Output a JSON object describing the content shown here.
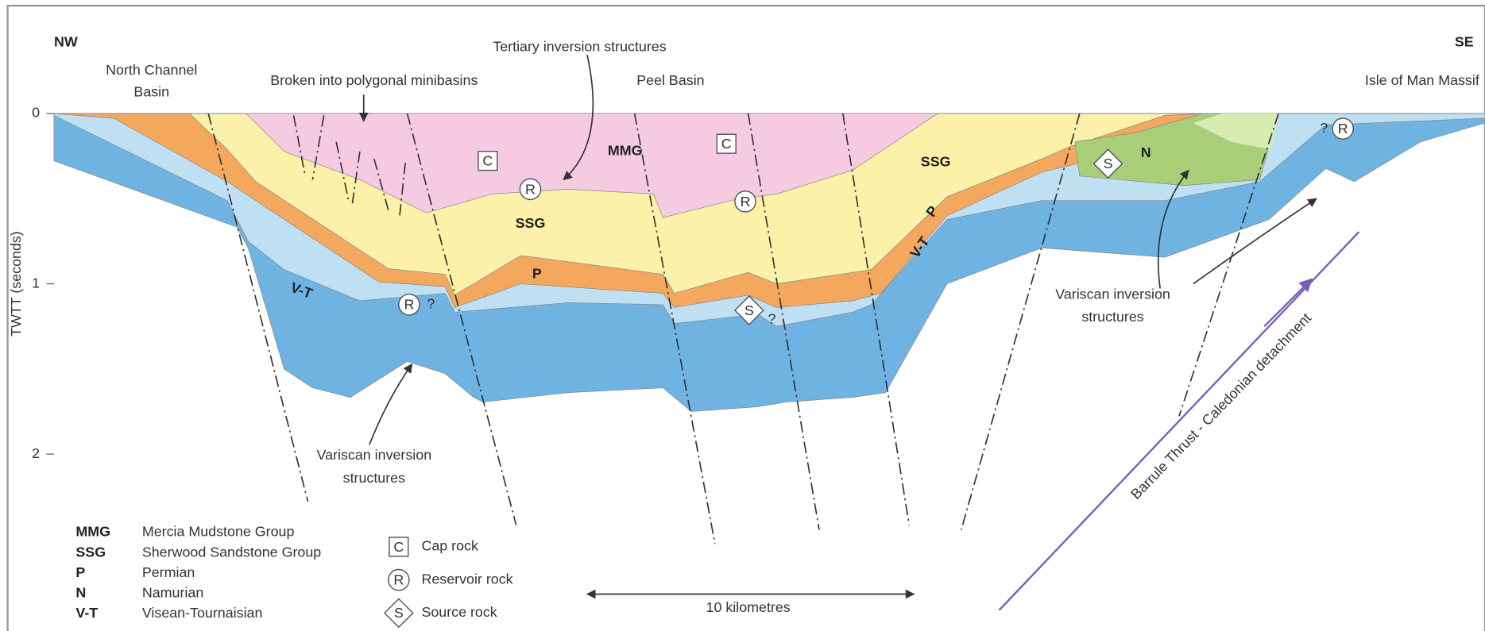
{
  "header": {
    "left": "NW",
    "right": "SE"
  },
  "locations": {
    "north_channel": [
      "North Channel",
      "Basin"
    ],
    "minibasins": "Broken into polygonal minibasins",
    "tertiary": "Tertiary inversion structures",
    "peel": "Peel Basin",
    "isle_of_man": "Isle of Man Massif"
  },
  "axis": {
    "label": "TWTT (seconds)",
    "ticks": [
      0,
      1,
      2
    ]
  },
  "units": [
    "MMG",
    "SSG",
    "P",
    "V-T",
    "SSG",
    "P",
    "V-T",
    "N"
  ],
  "markers": [
    "C",
    "C",
    "R",
    "R",
    "R",
    "R",
    "S",
    "S"
  ],
  "queries": [
    "?",
    "?",
    "?"
  ],
  "annotations": {
    "variscan_left": [
      "Variscan inversion",
      "structures"
    ],
    "variscan_right": [
      "Variscan inversion",
      "structures"
    ],
    "thrust": "Barrule Thrust - Caledonian detachment",
    "scale": "10 kilometres"
  },
  "legend": {
    "units": [
      {
        "abbr": "MMG",
        "name": "Mercia Mudstone Group"
      },
      {
        "abbr": "SSG",
        "name": "Sherwood Sandstone Group"
      },
      {
        "abbr": "P",
        "name": "Permian"
      },
      {
        "abbr": "N",
        "name": "Namurian"
      },
      {
        "abbr": "V-T",
        "name": "Visean-Tournaisian"
      }
    ],
    "symbols": [
      {
        "symbol": "C",
        "name": "Cap rock"
      },
      {
        "symbol": "R",
        "name": "Reservoir rock"
      },
      {
        "symbol": "S",
        "name": "Source rock"
      }
    ]
  }
}
